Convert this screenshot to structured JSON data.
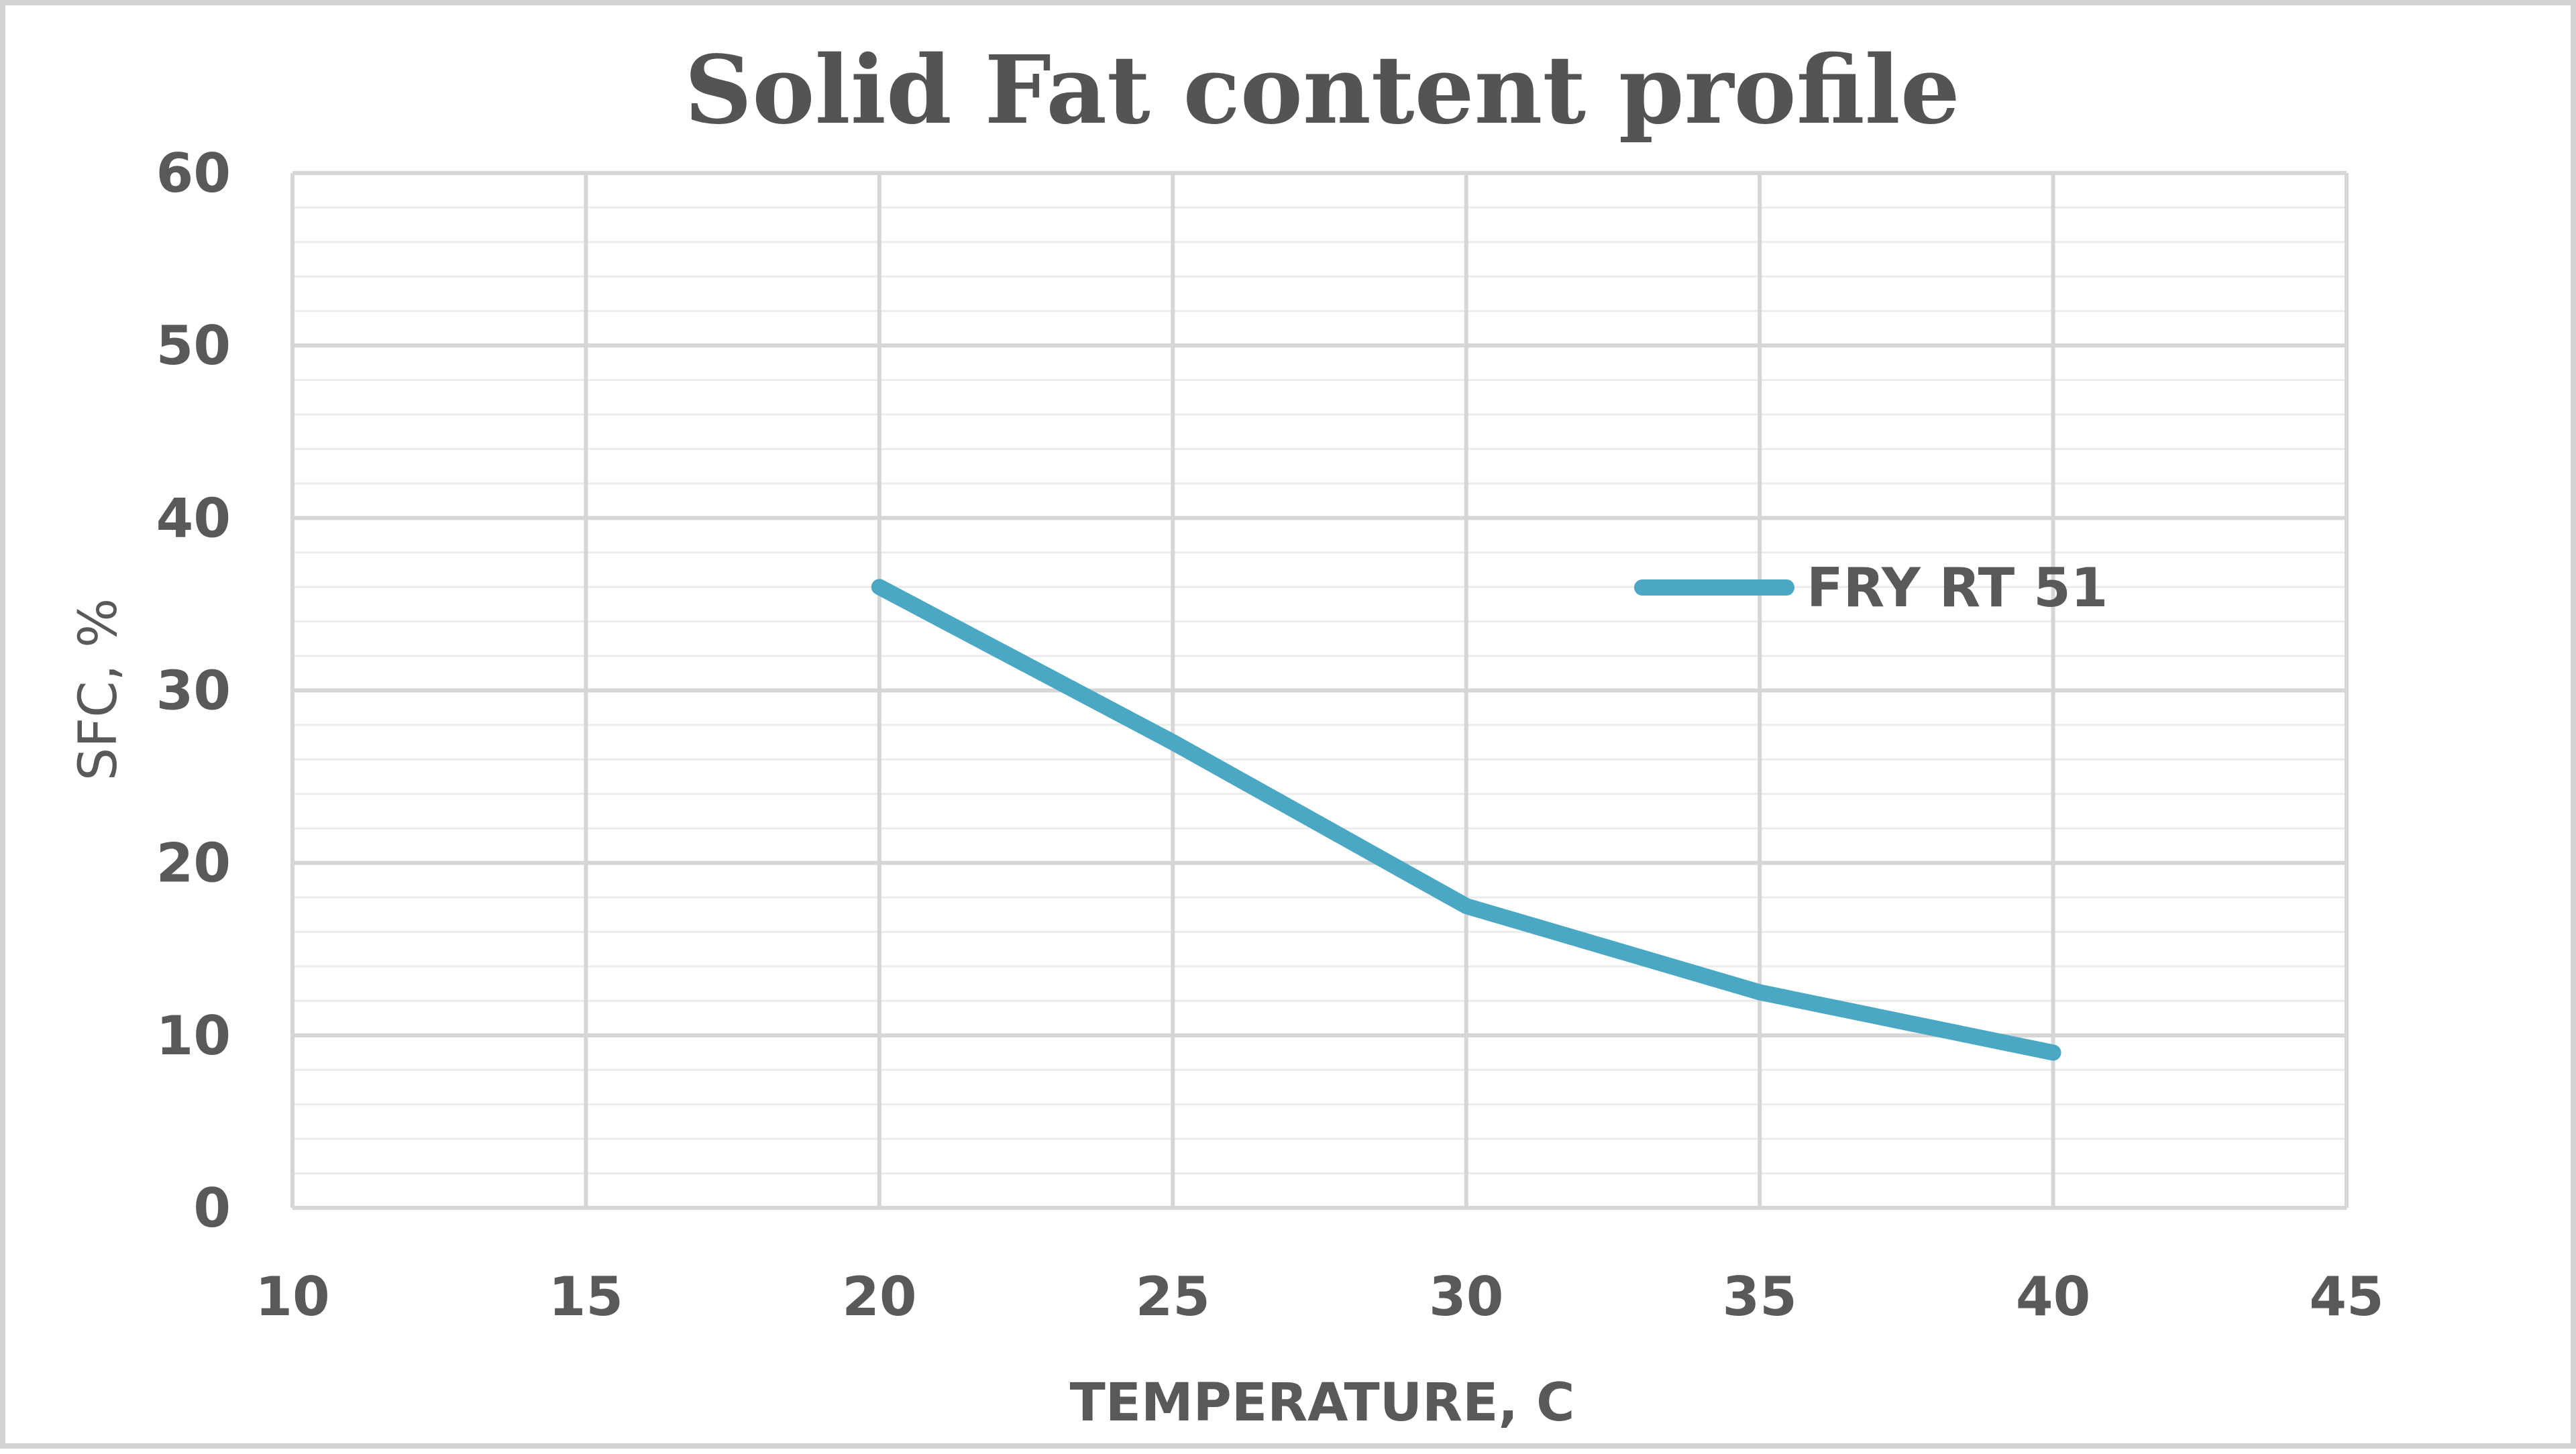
{
  "chart_data": {
    "type": "line",
    "title": "Solid Fat content profile",
    "xlabel": "TEMPERATURE, C",
    "ylabel": "SFC, %",
    "xlim": [
      10,
      45
    ],
    "ylim": [
      0,
      60
    ],
    "x_ticks": [
      10,
      15,
      20,
      25,
      30,
      35,
      40,
      45
    ],
    "y_ticks": [
      0,
      10,
      20,
      30,
      40,
      50,
      60
    ],
    "y_minor_step": 2,
    "grid": true,
    "legend_position": "right",
    "series": [
      {
        "name": "FRY RT 51",
        "color": "#4aa8c4",
        "x": [
          20,
          25,
          30,
          35,
          40
        ],
        "y": [
          36,
          27,
          17.5,
          12.5,
          9
        ]
      }
    ]
  }
}
